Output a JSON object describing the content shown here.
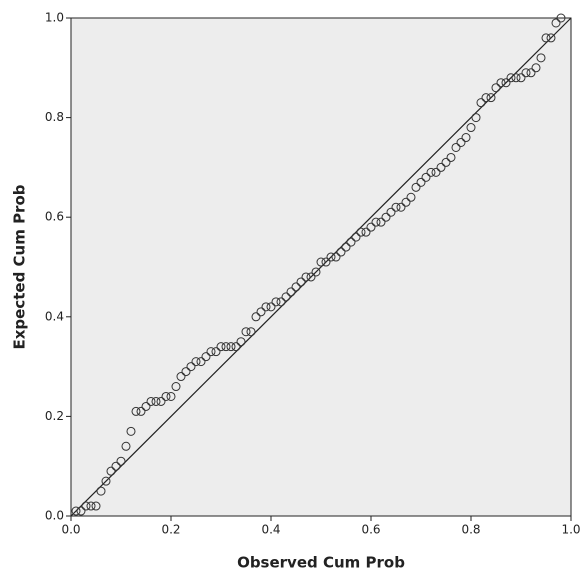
{
  "chart_data": {
    "type": "scatter",
    "xlabel": "Observed Cum Prob",
    "ylabel": "Expected Cum Prob",
    "xlim": [
      0,
      1
    ],
    "ylim": [
      0,
      1
    ],
    "xticks": [
      {
        "value": 0,
        "label": "0.0"
      },
      0.2,
      0.4,
      0.6,
      0.8,
      {
        "value": 1,
        "label": "1.0"
      }
    ],
    "yticks": [
      {
        "value": 0,
        "label": "0.0"
      },
      0.2,
      0.4,
      0.6,
      0.8,
      {
        "value": 1,
        "label": "1.0"
      }
    ],
    "color": "#333333",
    "x": [
      0.01,
      0.02,
      0.03,
      0.04,
      0.05,
      0.06,
      0.07,
      0.08,
      0.09,
      0.1,
      0.11,
      0.12,
      0.13,
      0.14,
      0.15,
      0.16,
      0.17,
      0.18,
      0.19,
      0.2,
      0.21,
      0.22,
      0.23,
      0.24,
      0.25,
      0.26,
      0.27,
      0.28,
      0.29,
      0.3,
      0.31,
      0.32,
      0.33,
      0.34,
      0.35,
      0.36,
      0.37,
      0.38,
      0.39,
      0.4,
      0.41,
      0.42,
      0.43,
      0.44,
      0.45,
      0.46,
      0.47,
      0.48,
      0.49,
      0.5,
      0.51,
      0.52,
      0.53,
      0.54,
      0.55,
      0.56,
      0.57,
      0.58,
      0.59,
      0.6,
      0.61,
      0.62,
      0.63,
      0.64,
      0.65,
      0.66,
      0.67,
      0.68,
      0.69,
      0.7,
      0.71,
      0.72,
      0.73,
      0.74,
      0.75,
      0.76,
      0.77,
      0.78,
      0.79,
      0.8,
      0.81,
      0.82,
      0.83,
      0.84,
      0.85,
      0.86,
      0.87,
      0.88,
      0.89,
      0.9,
      0.91,
      0.92,
      0.93,
      0.94,
      0.95,
      0.96,
      0.97,
      0.98
    ],
    "y": [
      0.01,
      0.01,
      0.02,
      0.02,
      0.02,
      0.05,
      0.07,
      0.09,
      0.1,
      0.11,
      0.14,
      0.17,
      0.21,
      0.21,
      0.22,
      0.23,
      0.23,
      0.23,
      0.24,
      0.24,
      0.26,
      0.28,
      0.29,
      0.3,
      0.31,
      0.31,
      0.32,
      0.33,
      0.33,
      0.34,
      0.34,
      0.34,
      0.34,
      0.35,
      0.37,
      0.37,
      0.4,
      0.41,
      0.42,
      0.42,
      0.43,
      0.43,
      0.44,
      0.45,
      0.46,
      0.47,
      0.48,
      0.48,
      0.49,
      0.51,
      0.51,
      0.52,
      0.52,
      0.53,
      0.54,
      0.55,
      0.56,
      0.57,
      0.57,
      0.58,
      0.59,
      0.59,
      0.6,
      0.61,
      0.62,
      0.62,
      0.63,
      0.64,
      0.66,
      0.67,
      0.68,
      0.69,
      0.69,
      0.7,
      0.71,
      0.72,
      0.74,
      0.75,
      0.76,
      0.78,
      0.8,
      0.83,
      0.84,
      0.84,
      0.86,
      0.87,
      0.87,
      0.88,
      0.88,
      0.88,
      0.89,
      0.89,
      0.9,
      0.92,
      0.96,
      0.96,
      0.99,
      1.0
    ],
    "reference_line": {
      "x": [
        0,
        1
      ],
      "y": [
        0,
        1
      ]
    }
  }
}
